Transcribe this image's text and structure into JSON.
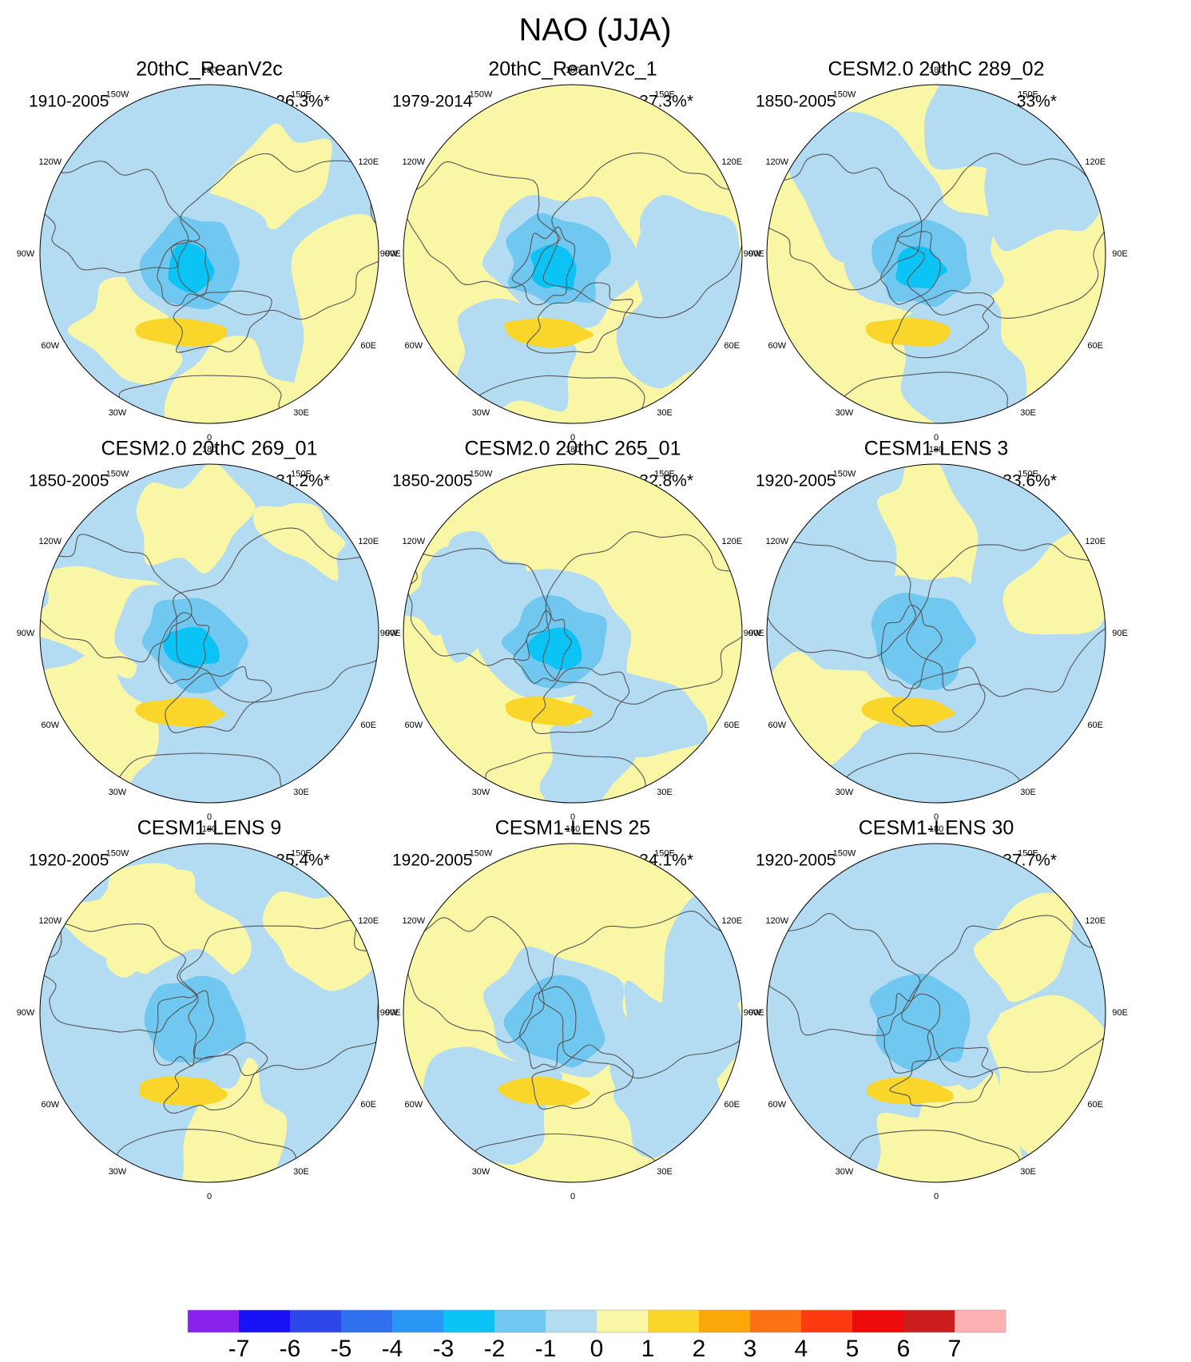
{
  "chart_data": {
    "type": "polar-stereographic-contour-maps",
    "title": "NAO (JJA)",
    "projection": "North Polar Stereographic",
    "longitude_labels": [
      "180",
      "150E",
      "120E",
      "90E",
      "60E",
      "30E",
      "0",
      "30W",
      "60W",
      "90W",
      "120W",
      "150W"
    ],
    "panels": [
      {
        "title": "20thC_ReanV2c",
        "period": "1910-2005",
        "variance": "26.3%*"
      },
      {
        "title": "20thC_ReanV2c_1",
        "period": "1979-2014",
        "variance": "37.3%*"
      },
      {
        "title": "CESM2.0 20thC 289_02",
        "period": "1850-2005",
        "variance": "33%*"
      },
      {
        "title": "CESM2.0 20thC 269_01",
        "period": "1850-2005",
        "variance": "31.2%*"
      },
      {
        "title": "CESM2.0 20thC 265_01",
        "period": "1850-2005",
        "variance": "32.8%*"
      },
      {
        "title": "CESM1-LENS 3",
        "period": "1920-2005",
        "variance": "33.6%*"
      },
      {
        "title": "CESM1-LENS 9",
        "period": "1920-2005",
        "variance": "35.4%*"
      },
      {
        "title": "CESM1-LENS 25",
        "period": "1920-2005",
        "variance": "34.1%*"
      },
      {
        "title": "CESM1-LENS 30",
        "period": "1920-2005",
        "variance": "37.7%*"
      }
    ],
    "colorbar": {
      "labels": [
        "-7",
        "-6",
        "-5",
        "-4",
        "-3",
        "-2",
        "-1",
        "0",
        "1",
        "2",
        "3",
        "4",
        "5",
        "6",
        "7"
      ],
      "colors": [
        "#8a22ee",
        "#1a12f6",
        "#2e47e8",
        "#3070ee",
        "#2a96f5",
        "#0bc3f5",
        "#70c7f0",
        "#b3dcf3",
        "#f9f7a6",
        "#fad62a",
        "#fba70a",
        "#fc7114",
        "#fd3a10",
        "#ee0b0b",
        "#cc1c1d",
        "#ffb0b2"
      ]
    },
    "colors": {
      "land_outline": "#555555",
      "positive_light": "#f9f7a6",
      "negative_light": "#b3dcf3",
      "negative_mid": "#70c7f0",
      "negative_strong": "#0bc3f5",
      "positive_mid": "#fad62a"
    }
  }
}
